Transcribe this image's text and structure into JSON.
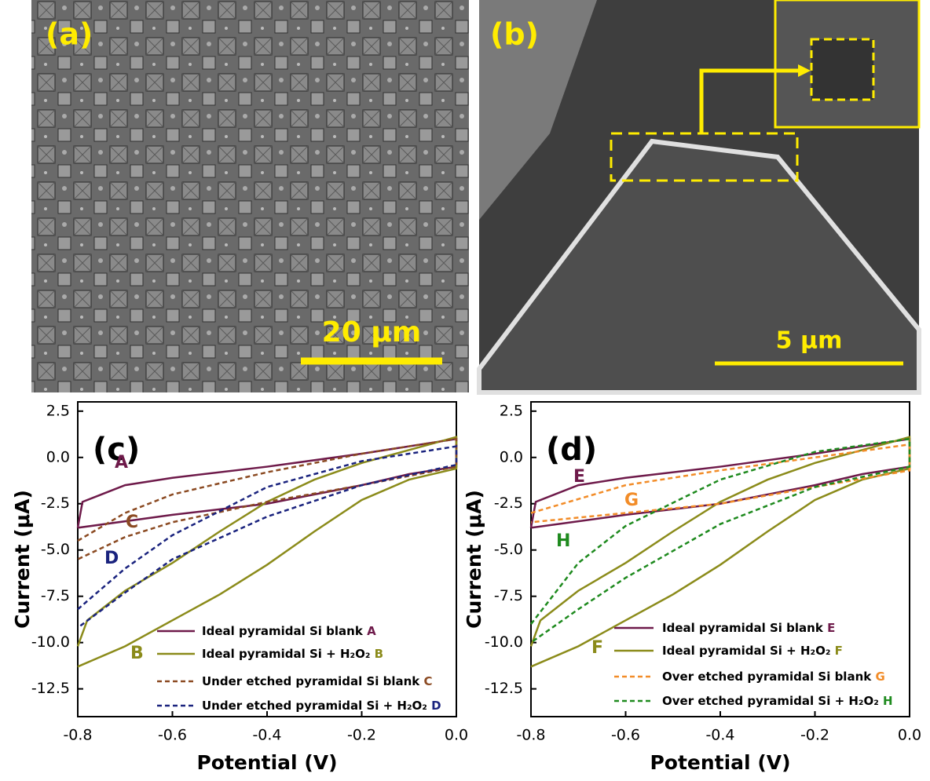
{
  "panels": {
    "a": {
      "label": "(a)",
      "scale_bar": "20 μm"
    },
    "b": {
      "label": "(b)",
      "scale_bar": "5 μm"
    }
  },
  "chart_data": [
    {
      "type": "line",
      "panel_label": "(c)",
      "x_label": "Potential (V)",
      "y_label": "Current (μA)",
      "xlim": [
        -0.8,
        0
      ],
      "ylim": [
        -14,
        3
      ],
      "xticks": [
        -0.8,
        -0.6,
        -0.4,
        -0.2,
        {
          "value": 0,
          "label": "0.0"
        }
      ],
      "yticks": [
        2.5,
        {
          "value": 0,
          "label": "0.0"
        },
        -2.5,
        {
          "value": -5,
          "label": "-5.0"
        },
        -7.5,
        {
          "value": -10,
          "label": "-10.0"
        },
        -12.5
      ],
      "series": [
        {
          "name": "Ideal pyramidal Si blank",
          "label": "A",
          "color": "#6e1a4a",
          "dashed": false,
          "x": [
            -0.8,
            -0.79,
            -0.7,
            -0.6,
            -0.4,
            -0.2,
            0,
            0,
            -0.1,
            -0.2,
            -0.4,
            -0.6,
            -0.8,
            -0.8
          ],
          "values": [
            -3.8,
            -2.4,
            -1.5,
            -1.1,
            -0.5,
            0.2,
            1.0,
            -0.5,
            -0.9,
            -1.5,
            -2.5,
            -3.1,
            -3.8,
            -3.8
          ]
        },
        {
          "name": "Ideal pyramidal Si + H₂O₂",
          "label": "B",
          "color": "#8b8b1a",
          "dashed": false,
          "x": [
            -0.8,
            -0.78,
            -0.7,
            -0.6,
            -0.5,
            -0.4,
            -0.3,
            -0.2,
            -0.1,
            0,
            0,
            -0.1,
            -0.2,
            -0.3,
            -0.4,
            -0.5,
            -0.6,
            -0.7,
            -0.8
          ],
          "values": [
            -10.2,
            -8.8,
            -7.2,
            -5.7,
            -4.0,
            -2.4,
            -1.2,
            -0.3,
            0.4,
            1.1,
            -0.6,
            -1.2,
            -2.3,
            -4.0,
            -5.8,
            -7.4,
            -8.8,
            -10.2,
            -11.3
          ]
        },
        {
          "name": "Under etched pyramidal Si blank",
          "label": "C",
          "color": "#8b4a22",
          "dashed": true,
          "x": [
            -0.8,
            -0.7,
            -0.6,
            -0.4,
            -0.2,
            0,
            0,
            -0.2,
            -0.4,
            -0.6,
            -0.7,
            -0.8
          ],
          "values": [
            -4.5,
            -3.0,
            -2.0,
            -0.8,
            0.2,
            1.0,
            -0.5,
            -1.5,
            -2.4,
            -3.5,
            -4.3,
            -5.5
          ]
        },
        {
          "name": "Under etched pyramidal Si + H₂O₂",
          "label": "D",
          "color": "#1a237e",
          "dashed": true,
          "x": [
            -0.8,
            -0.7,
            -0.6,
            -0.4,
            -0.2,
            0,
            0,
            -0.2,
            -0.4,
            -0.6,
            -0.7,
            -0.8
          ],
          "values": [
            -8.2,
            -6.0,
            -4.2,
            -1.6,
            -0.2,
            0.6,
            -0.4,
            -1.5,
            -3.2,
            -5.5,
            -7.3,
            -9.2
          ]
        }
      ]
    },
    {
      "type": "line",
      "panel_label": "(d)",
      "x_label": "Potential (V)",
      "y_label": "Current (μA)",
      "xlim": [
        -0.8,
        0
      ],
      "ylim": [
        -14,
        3
      ],
      "xticks": [
        -0.8,
        -0.6,
        -0.4,
        -0.2,
        {
          "value": 0,
          "label": "0.0"
        }
      ],
      "yticks": [
        2.5,
        {
          "value": 0,
          "label": "0.0"
        },
        -2.5,
        {
          "value": -5,
          "label": "-5.0"
        },
        -7.5,
        {
          "value": -10,
          "label": "-10.0"
        },
        -12.5
      ],
      "series": [
        {
          "name": "Ideal pyramidal Si blank",
          "label": "E",
          "color": "#6e1a4a",
          "dashed": false,
          "x": [
            -0.8,
            -0.79,
            -0.7,
            -0.6,
            -0.4,
            -0.2,
            0,
            0,
            -0.1,
            -0.2,
            -0.4,
            -0.6,
            -0.8,
            -0.8
          ],
          "values": [
            -3.8,
            -2.4,
            -1.5,
            -1.1,
            -0.5,
            0.2,
            1.0,
            -0.5,
            -0.9,
            -1.5,
            -2.5,
            -3.1,
            -3.8,
            -3.8
          ]
        },
        {
          "name": "Ideal pyramidal Si + H₂O₂",
          "label": "F",
          "color": "#8b8b1a",
          "dashed": false,
          "x": [
            -0.8,
            -0.78,
            -0.7,
            -0.6,
            -0.5,
            -0.4,
            -0.3,
            -0.2,
            -0.1,
            0,
            0,
            -0.1,
            -0.2,
            -0.3,
            -0.4,
            -0.5,
            -0.6,
            -0.7,
            -0.8
          ],
          "values": [
            -10.2,
            -8.8,
            -7.2,
            -5.7,
            -4.0,
            -2.4,
            -1.2,
            -0.3,
            0.4,
            1.1,
            -0.6,
            -1.2,
            -2.3,
            -4.0,
            -5.8,
            -7.4,
            -8.8,
            -10.2,
            -11.3
          ]
        },
        {
          "name": "Over etched pyramidal Si blank",
          "label": "G",
          "color": "#f28c28",
          "dashed": true,
          "x": [
            -0.8,
            -0.6,
            -0.4,
            -0.2,
            0,
            0,
            -0.2,
            -0.4,
            -0.6,
            -0.8
          ],
          "values": [
            -3.0,
            -1.5,
            -0.7,
            0,
            0.7,
            -0.7,
            -1.6,
            -2.5,
            -3.0,
            -3.5
          ]
        },
        {
          "name": "Over etched pyramidal Si + H₂O₂",
          "label": "H",
          "color": "#1e8a1e",
          "dashed": true,
          "x": [
            -0.8,
            -0.7,
            -0.6,
            -0.4,
            -0.2,
            0,
            0,
            -0.2,
            -0.4,
            -0.6,
            -0.7,
            -0.8
          ],
          "values": [
            -9.0,
            -5.7,
            -3.7,
            -1.2,
            0.3,
            1.0,
            -0.5,
            -1.6,
            -3.6,
            -6.5,
            -8.2,
            -10.0
          ]
        }
      ]
    }
  ]
}
